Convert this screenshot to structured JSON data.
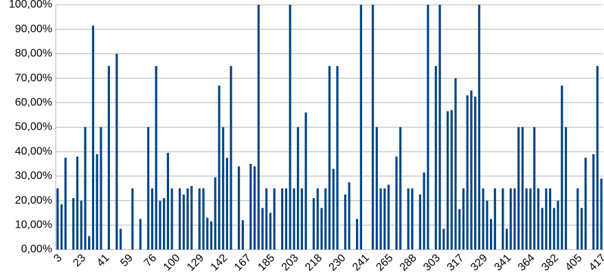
{
  "chart_data": {
    "type": "bar",
    "categories": [
      "3",
      null,
      null,
      null,
      null,
      null,
      "23",
      null,
      null,
      null,
      null,
      null,
      "41",
      null,
      null,
      null,
      null,
      null,
      "59",
      null,
      null,
      null,
      null,
      null,
      "76",
      null,
      null,
      null,
      null,
      null,
      "100",
      null,
      null,
      null,
      null,
      null,
      "129",
      null,
      null,
      null,
      null,
      null,
      "142",
      null,
      null,
      null,
      null,
      null,
      "167",
      null,
      null,
      null,
      null,
      null,
      "185",
      null,
      null,
      null,
      null,
      null,
      "203",
      null,
      null,
      null,
      null,
      null,
      "218",
      null,
      null,
      null,
      null,
      null,
      "230",
      null,
      null,
      null,
      null,
      null,
      "241",
      null,
      null,
      null,
      null,
      null,
      "265",
      null,
      null,
      null,
      null,
      null,
      "288",
      null,
      null,
      null,
      null,
      null,
      "303",
      null,
      null,
      null,
      null,
      null,
      "317",
      null,
      null,
      null,
      null,
      null,
      "329",
      null,
      null,
      null,
      null,
      null,
      "341",
      null,
      null,
      null,
      null,
      null,
      "364",
      null,
      null,
      null,
      null,
      null,
      "382",
      null,
      null,
      null,
      null,
      null,
      "405",
      null,
      null,
      null,
      null,
      null,
      "417"
    ],
    "values": [
      25,
      18.5,
      37.5,
      0,
      21,
      38,
      20,
      50,
      5.5,
      91.5,
      39,
      50,
      0,
      75,
      0,
      80,
      8.5,
      0,
      0,
      25,
      0,
      12.5,
      0,
      50,
      25,
      75,
      20,
      21,
      39.5,
      25,
      0,
      25,
      22.5,
      25,
      26,
      0,
      25,
      25,
      13,
      11.5,
      29.5,
      67,
      50,
      37.5,
      75,
      0,
      34,
      12,
      0,
      35,
      34,
      100,
      17,
      25,
      15,
      25,
      0,
      25,
      25,
      100,
      25,
      50,
      25,
      56,
      0,
      21,
      25,
      17,
      25,
      75,
      33,
      75,
      0,
      22.5,
      27.5,
      0,
      12.5,
      100,
      0,
      0,
      100,
      50,
      25,
      25,
      26.5,
      0,
      38,
      50,
      0,
      25,
      25,
      0,
      22.5,
      31.5,
      100,
      0,
      75,
      100,
      8.5,
      56.5,
      57,
      70,
      16.5,
      25,
      63,
      65,
      62.5,
      100,
      25,
      20,
      12.5,
      25,
      0,
      25,
      8.5,
      25,
      25,
      50,
      50,
      25,
      25,
      50,
      25,
      17,
      25,
      25,
      17,
      20,
      67,
      50,
      0,
      0,
      25,
      17,
      37.5,
      0,
      39,
      75,
      29
    ],
    "color": "#004586",
    "ylim": [
      0,
      100
    ],
    "yticks": [
      {
        "value": 0,
        "label": "0,00%"
      },
      {
        "value": 10,
        "label": "10,00%"
      },
      {
        "value": 20,
        "label": "20,00%"
      },
      {
        "value": 30,
        "label": "30,00%"
      },
      {
        "value": 40,
        "label": "40,00%"
      },
      {
        "value": 50,
        "label": "50,00%"
      },
      {
        "value": 60,
        "label": "60,00%"
      },
      {
        "value": 70,
        "label": "70,00%"
      },
      {
        "value": 80,
        "label": "80,00%"
      },
      {
        "value": 90,
        "label": "90,00%"
      },
      {
        "value": 100,
        "label": "100,00%"
      }
    ],
    "grid": true
  }
}
